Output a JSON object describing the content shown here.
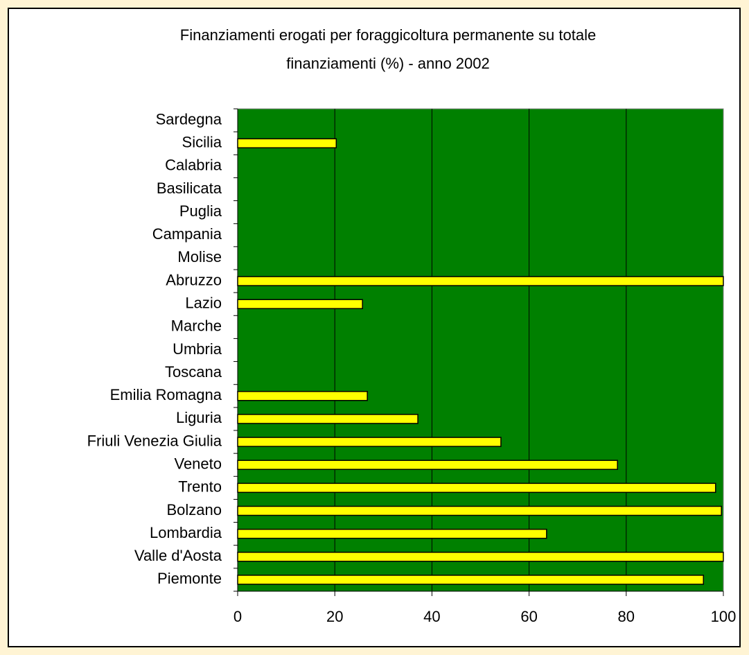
{
  "chart_data": {
    "type": "bar",
    "orientation": "horizontal",
    "title": [
      "Finanziamenti erogati per foraggicoltura permanente su totale",
      "finanziamenti (%) - anno 2002"
    ],
    "categories": [
      "Piemonte",
      "Valle d'Aosta",
      "Lombardia",
      "Bolzano",
      "Trento",
      "Veneto",
      "Friuli Venezia Giulia",
      "Liguria",
      "Emilia Romagna",
      "Toscana",
      "Umbria",
      "Marche",
      "Lazio",
      "Abruzzo",
      "Molise",
      "Campania",
      "Puglia",
      "Basilicata",
      "Calabria",
      "Sicilia",
      "Sardegna"
    ],
    "values": [
      95.9,
      100,
      63.6,
      99.6,
      98.4,
      78.2,
      54.2,
      37.1,
      26.7,
      0,
      0,
      0,
      25.7,
      100,
      0,
      0,
      0,
      0,
      0,
      20.3,
      0
    ],
    "color": "#ffff00",
    "plot_background": "#008000",
    "xlim": [
      0,
      100
    ],
    "xticks": [
      0,
      20,
      40,
      60,
      80,
      100
    ],
    "grid": true
  }
}
